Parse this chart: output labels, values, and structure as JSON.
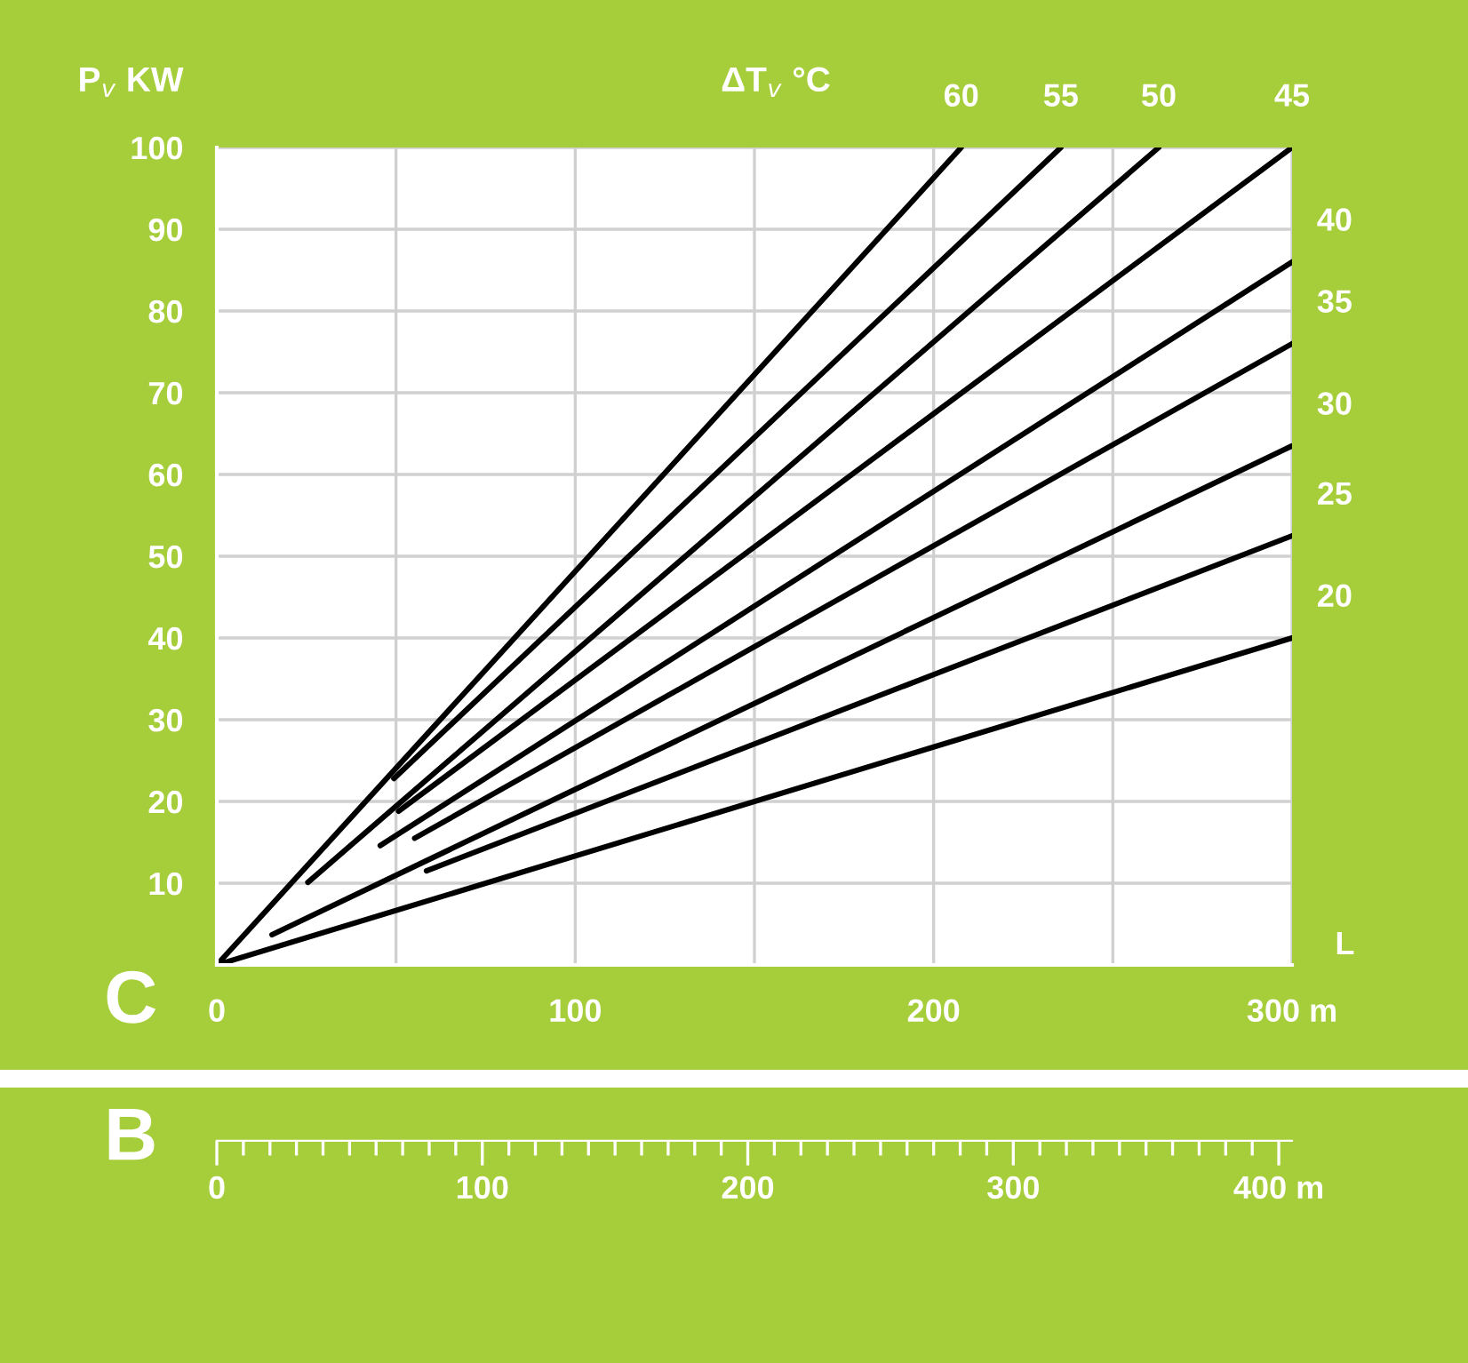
{
  "chart_data": {
    "type": "line",
    "ylabel": "P$_{v}$ KW",
    "legend_title": "ΔT$_{v}$ °C",
    "xlabel": "L",
    "xlim": [
      0,
      300
    ],
    "xticks": [
      0,
      {
        "value": 50,
        "label": null
      },
      100,
      {
        "value": 150,
        "label": null
      },
      200,
      {
        "value": 250,
        "label": null
      },
      {
        "value": 300,
        "label": "300 m"
      }
    ],
    "ylim": [
      0,
      100
    ],
    "yticks": [
      10,
      20,
      30,
      40,
      50,
      60,
      70,
      80,
      90,
      100
    ],
    "x2lim": [
      0,
      405
    ],
    "x2ticks": [
      0,
      100,
      200,
      300,
      {
        "value": 400,
        "label": "400 m"
      }
    ],
    "grid": true,
    "legend": false,
    "marker": "none",
    "line_style": "solid",
    "annotations": [
      "C",
      "B"
    ],
    "series": [
      {
        "name": "20",
        "color": "#000000",
        "x": [
          0,
          300
        ],
        "values": [
          0,
          40
        ]
      },
      {
        "name": "25",
        "color": "#000000",
        "x": [
          58.5,
          300
        ],
        "values": [
          11.5,
          52.5
        ]
      },
      {
        "name": "30",
        "color": "#000000",
        "x": [
          15.4,
          300
        ],
        "values": [
          3.7,
          63.5
        ]
      },
      {
        "name": "35",
        "color": "#000000",
        "x": [
          55.2,
          300
        ],
        "values": [
          15.5,
          76
        ]
      },
      {
        "name": "40",
        "color": "#000000",
        "x": [
          45.6,
          300
        ],
        "values": [
          14.6,
          86
        ]
      },
      {
        "name": "45",
        "color": "#000000",
        "x": [
          50.7,
          300
        ],
        "values": [
          18.8,
          100
        ]
      },
      {
        "name": "50",
        "color": "#000000",
        "x": [
          25.4,
          262.8
        ],
        "values": [
          10.1,
          100
        ]
      },
      {
        "name": "55",
        "color": "#000000",
        "x": [
          49.4,
          235.5
        ],
        "values": [
          22.8,
          100
        ]
      },
      {
        "name": "60",
        "color": "#000000",
        "x": [
          0,
          207.7
        ],
        "values": [
          0,
          100
        ]
      }
    ]
  }
}
